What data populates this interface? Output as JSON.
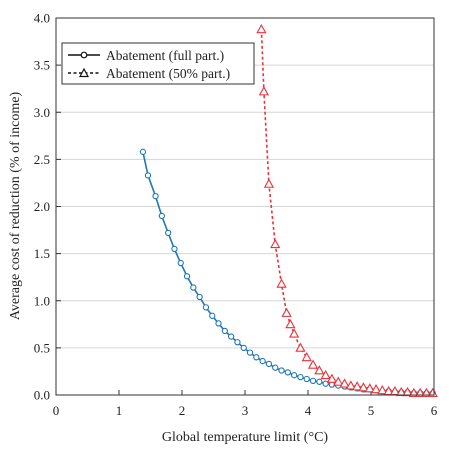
{
  "chart_data": {
    "type": "line",
    "xlabel": "Global temperature limit (°C)",
    "ylabel": "Average cost of reduction (% of income)",
    "xlim": [
      0,
      6
    ],
    "ylim": [
      0,
      4.0
    ],
    "x_ticks": [
      0,
      1,
      2,
      3,
      4,
      5,
      6
    ],
    "y_ticks": [
      0.0,
      0.5,
      1.0,
      1.5,
      2.0,
      2.5,
      3.0,
      3.5,
      4.0
    ],
    "y_tick_labels": [
      "0.0",
      "0.5",
      "1.0",
      "1.5",
      "2.0",
      "2.5",
      "3.0",
      "3.5",
      "4.0"
    ],
    "grid": "horizontal",
    "legend_position": "top-left",
    "series": [
      {
        "name": "Abatement (full part.)",
        "color": "#1f77b4",
        "line_style": "solid",
        "marker": "circle",
        "x": [
          1.38,
          1.46,
          1.58,
          1.68,
          1.78,
          1.88,
          1.98,
          2.08,
          2.18,
          2.28,
          2.38,
          2.48,
          2.58,
          2.68,
          2.78,
          2.88,
          2.98,
          3.08,
          3.18,
          3.28,
          3.38,
          3.48,
          3.58,
          3.68,
          3.78,
          3.88,
          3.98,
          4.08,
          4.18,
          4.28,
          4.38,
          4.48,
          4.58,
          4.68,
          4.78,
          4.88,
          4.98,
          5.08,
          5.18,
          5.28,
          5.38,
          5.48,
          5.58,
          5.68,
          5.78,
          5.88,
          5.98
        ],
        "y": [
          2.58,
          2.33,
          2.11,
          1.9,
          1.72,
          1.55,
          1.4,
          1.26,
          1.14,
          1.04,
          0.93,
          0.84,
          0.76,
          0.68,
          0.62,
          0.56,
          0.5,
          0.45,
          0.4,
          0.36,
          0.33,
          0.29,
          0.26,
          0.24,
          0.21,
          0.19,
          0.17,
          0.15,
          0.14,
          0.12,
          0.11,
          0.1,
          0.09,
          0.08,
          0.07,
          0.06,
          0.06,
          0.05,
          0.04,
          0.04,
          0.03,
          0.03,
          0.03,
          0.02,
          0.02,
          0.02,
          0.02
        ]
      },
      {
        "name": "Abatement (50% part.)",
        "color": "#e8333a",
        "line_style": "dashed",
        "marker": "triangle",
        "x": [
          3.26,
          3.3,
          3.38,
          3.48,
          3.58,
          3.66,
          3.72,
          3.78,
          3.88,
          3.98,
          4.08,
          4.18,
          4.28,
          4.38,
          4.48,
          4.58,
          4.68,
          4.78,
          4.88,
          4.98,
          5.08,
          5.18,
          5.28,
          5.38,
          5.48,
          5.58,
          5.68,
          5.78,
          5.88,
          5.98
        ],
        "y": [
          3.88,
          3.22,
          2.24,
          1.6,
          1.18,
          0.87,
          0.75,
          0.65,
          0.5,
          0.4,
          0.32,
          0.26,
          0.21,
          0.17,
          0.14,
          0.12,
          0.1,
          0.09,
          0.08,
          0.07,
          0.06,
          0.05,
          0.04,
          0.04,
          0.03,
          0.03,
          0.02,
          0.02,
          0.02,
          0.02
        ]
      }
    ]
  }
}
